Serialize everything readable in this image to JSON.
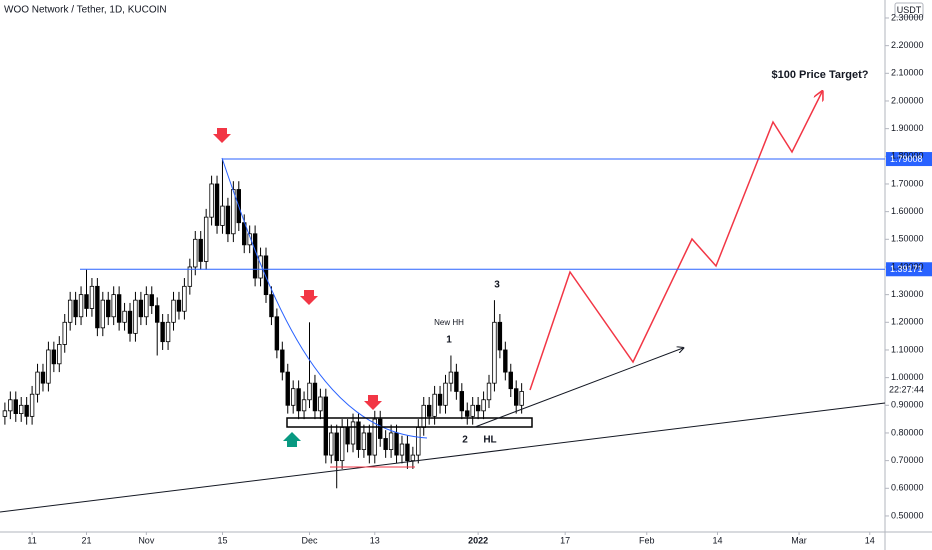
{
  "chart_data": {
    "type": "candlestick",
    "title": "WOO Network / Tether, 1D, KUCOIN",
    "currency": "USDT",
    "countdown": "22:27:44",
    "up_color": "#ffffff",
    "down_color": "#000000",
    "level_color": "#2962ff",
    "levels": [
      1.79008,
      1.39171
    ],
    "annotations": {
      "target": "$100 Price Target?",
      "new_hh": "New HH",
      "wave1": "1",
      "wave2": "2",
      "wave3": "3",
      "hl": "HL"
    },
    "x": [
      -5,
      -4,
      -3,
      -2,
      -1,
      0,
      1,
      2,
      3,
      4,
      5,
      6,
      7,
      8,
      9,
      10,
      11,
      12,
      13,
      14,
      15,
      16,
      17,
      18,
      19,
      20,
      21,
      22,
      23,
      24,
      25,
      26,
      27,
      28,
      29,
      30,
      31,
      32,
      33,
      34,
      35,
      36,
      37,
      38,
      39,
      40,
      41,
      42,
      43,
      44,
      45,
      46,
      47,
      48,
      49,
      50,
      51,
      52,
      53,
      54,
      55,
      56,
      57,
      58,
      59,
      60,
      61,
      62,
      63,
      64,
      65,
      66,
      67,
      68,
      69,
      70,
      71,
      72,
      73,
      74,
      75,
      76,
      77,
      78,
      79,
      80,
      81,
      82,
      83,
      84,
      85,
      86,
      87,
      88,
      89,
      90
    ],
    "open": [
      0.86,
      0.88,
      0.92,
      0.87,
      0.9,
      0.86,
      0.94,
      1.02,
      0.98,
      1.1,
      1.05,
      1.12,
      1.2,
      1.28,
      1.22,
      1.3,
      1.25,
      1.33,
      1.18,
      1.28,
      1.22,
      1.3,
      1.2,
      1.24,
      1.16,
      1.28,
      1.22,
      1.3,
      1.26,
      1.2,
      1.13,
      1.2,
      1.28,
      1.24,
      1.33,
      1.4,
      1.5,
      1.42,
      1.58,
      1.7,
      1.55,
      1.62,
      1.52,
      1.68,
      1.56,
      1.48,
      1.52,
      1.36,
      1.44,
      1.3,
      1.22,
      1.1,
      1.02,
      0.9,
      0.96,
      0.88,
      0.92,
      0.98,
      0.88,
      0.93,
      0.72,
      0.8,
      0.7,
      0.82,
      0.76,
      0.84,
      0.74,
      0.8,
      0.72,
      0.85,
      0.78,
      0.74,
      0.8,
      0.72,
      0.76,
      0.7,
      0.72,
      0.82,
      0.9,
      0.86,
      0.94,
      0.9,
      0.98,
      1.02,
      0.95,
      0.88,
      0.86,
      0.9,
      0.88,
      0.92,
      0.98,
      1.2,
      1.1,
      1.02,
      0.96,
      0.9
    ],
    "high": [
      0.91,
      0.95,
      0.95,
      0.93,
      0.93,
      0.97,
      1.05,
      1.05,
      1.13,
      1.13,
      1.15,
      1.23,
      1.31,
      1.31,
      1.33,
      1.39,
      1.36,
      1.36,
      1.31,
      1.31,
      1.33,
      1.33,
      1.27,
      1.27,
      1.31,
      1.31,
      1.33,
      1.33,
      1.29,
      1.23,
      1.23,
      1.31,
      1.31,
      1.36,
      1.43,
      1.53,
      1.53,
      1.61,
      1.73,
      1.73,
      1.79,
      1.65,
      1.71,
      1.71,
      1.59,
      1.55,
      1.55,
      1.47,
      1.47,
      1.33,
      1.25,
      1.13,
      1.05,
      0.99,
      0.99,
      0.95,
      1.2,
      1.01,
      0.96,
      0.96,
      0.83,
      0.83,
      0.85,
      0.85,
      0.87,
      0.87,
      0.83,
      0.83,
      0.88,
      0.88,
      0.81,
      0.83,
      0.83,
      0.79,
      0.79,
      0.75,
      0.85,
      0.93,
      0.93,
      0.97,
      0.97,
      1.01,
      1.08,
      1.05,
      0.98,
      0.91,
      0.93,
      0.93,
      0.95,
      1.01,
      1.28,
      1.23,
      1.13,
      1.05,
      0.99,
      0.98
    ],
    "low": [
      0.83,
      0.85,
      0.84,
      0.84,
      0.83,
      0.83,
      0.91,
      0.95,
      0.95,
      1.02,
      1.02,
      1.09,
      1.17,
      1.19,
      1.19,
      1.22,
      1.22,
      1.15,
      1.15,
      1.19,
      1.19,
      1.17,
      1.17,
      1.13,
      1.13,
      1.19,
      1.19,
      1.23,
      1.08,
      1.1,
      1.1,
      1.17,
      1.21,
      1.21,
      1.3,
      1.37,
      1.39,
      1.39,
      1.55,
      1.52,
      1.52,
      1.49,
      1.49,
      1.53,
      1.45,
      1.45,
      1.33,
      1.33,
      1.27,
      1.19,
      1.07,
      0.99,
      0.87,
      0.87,
      0.85,
      0.85,
      0.89,
      0.85,
      0.85,
      0.69,
      0.69,
      0.6,
      0.67,
      0.73,
      0.73,
      0.71,
      0.71,
      0.69,
      0.69,
      0.75,
      0.71,
      0.71,
      0.69,
      0.69,
      0.67,
      0.67,
      0.69,
      0.79,
      0.83,
      0.83,
      0.87,
      0.87,
      0.95,
      0.92,
      0.85,
      0.83,
      0.83,
      0.85,
      0.85,
      0.89,
      0.95,
      1.07,
      0.99,
      0.93,
      0.87,
      0.87
    ],
    "close": [
      0.88,
      0.92,
      0.87,
      0.9,
      0.86,
      0.94,
      1.02,
      0.98,
      1.1,
      1.05,
      1.12,
      1.2,
      1.28,
      1.22,
      1.3,
      1.25,
      1.33,
      1.18,
      1.28,
      1.22,
      1.3,
      1.2,
      1.24,
      1.16,
      1.28,
      1.22,
      1.3,
      1.26,
      1.2,
      1.13,
      1.2,
      1.28,
      1.24,
      1.33,
      1.4,
      1.5,
      1.42,
      1.58,
      1.7,
      1.55,
      1.62,
      1.52,
      1.68,
      1.56,
      1.48,
      1.52,
      1.36,
      1.44,
      1.3,
      1.22,
      1.1,
      1.02,
      0.9,
      0.96,
      0.88,
      0.92,
      0.98,
      0.88,
      0.93,
      0.72,
      0.8,
      0.7,
      0.82,
      0.76,
      0.84,
      0.74,
      0.8,
      0.72,
      0.85,
      0.78,
      0.74,
      0.8,
      0.72,
      0.76,
      0.7,
      0.72,
      0.82,
      0.9,
      0.86,
      0.94,
      0.9,
      0.98,
      1.02,
      0.95,
      0.88,
      0.86,
      0.9,
      0.88,
      0.92,
      0.98,
      1.2,
      1.1,
      1.02,
      0.96,
      0.9,
      0.95
    ],
    "xlim": [
      -5.9,
      156.8
    ],
    "ylim": [
      0.442,
      2.365
    ],
    "xticks": [
      {
        "value": 0,
        "label": "11"
      },
      {
        "value": 10,
        "label": "21"
      },
      {
        "value": 21,
        "label": "Nov"
      },
      {
        "value": 35,
        "label": "15"
      },
      {
        "value": 51,
        "label": "Dec"
      },
      {
        "value": 63,
        "label": "13"
      },
      {
        "value": 82,
        "label": "2022"
      },
      {
        "value": 98,
        "label": "17"
      },
      {
        "value": 113,
        "label": "Feb"
      },
      {
        "value": 126,
        "label": "14"
      },
      {
        "value": 141,
        "label": "Mar"
      },
      {
        "value": 154,
        "label": "14"
      }
    ],
    "yticks": [
      {
        "value": 0.5,
        "label": "0.50000"
      },
      {
        "value": 0.6,
        "label": "0.60000"
      },
      {
        "value": 0.7,
        "label": "0.70000"
      },
      {
        "value": 0.8,
        "label": "0.80000"
      },
      {
        "value": 0.9,
        "label": "0.90000"
      },
      {
        "value": 1.0,
        "label": "1.00000"
      },
      {
        "value": 1.1,
        "label": "1.10000"
      },
      {
        "value": 1.2,
        "label": "1.20000"
      },
      {
        "value": 1.3,
        "label": "1.30000"
      },
      {
        "value": 1.4,
        "label": "1.40000"
      },
      {
        "value": 1.5,
        "label": "1.50000"
      },
      {
        "value": 1.6,
        "label": "1.60000"
      },
      {
        "value": 1.7,
        "label": "1.70000"
      },
      {
        "value": 1.8,
        "label": "1.80000"
      },
      {
        "value": 1.9,
        "label": "1.90000"
      },
      {
        "value": 2.0,
        "label": "2.00000"
      },
      {
        "value": 2.1,
        "label": "2.10000"
      },
      {
        "value": 2.2,
        "label": "2.20000"
      },
      {
        "value": 2.3,
        "label": "2.30000"
      }
    ]
  }
}
